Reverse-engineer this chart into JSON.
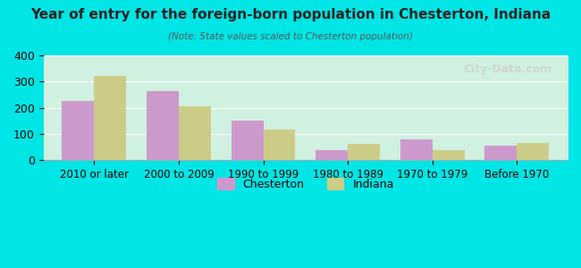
{
  "title": "Year of entry for the foreign-born population in Chesterton, Indiana",
  "subtitle": "(Note: State values scaled to Chesterton population)",
  "categories": [
    "2010 or later",
    "2000 to 2009",
    "1990 to 1999",
    "1980 to 1989",
    "1970 to 1979",
    "Before 1970"
  ],
  "chesterton": [
    228,
    263,
    152,
    38,
    80,
    57
  ],
  "indiana": [
    320,
    207,
    118,
    62,
    40,
    65
  ],
  "chesterton_color": "#cc99cc",
  "indiana_color": "#cccc88",
  "background_outer": "#00e5e5",
  "background_inner_top": "#e8f5e8",
  "background_inner_bottom": "#d0f0e0",
  "ylim": [
    0,
    400
  ],
  "yticks": [
    0,
    100,
    200,
    300,
    400
  ],
  "bar_width": 0.38,
  "legend_chesterton": "Chesterton",
  "legend_indiana": "Indiana",
  "watermark": "City-Data.com"
}
